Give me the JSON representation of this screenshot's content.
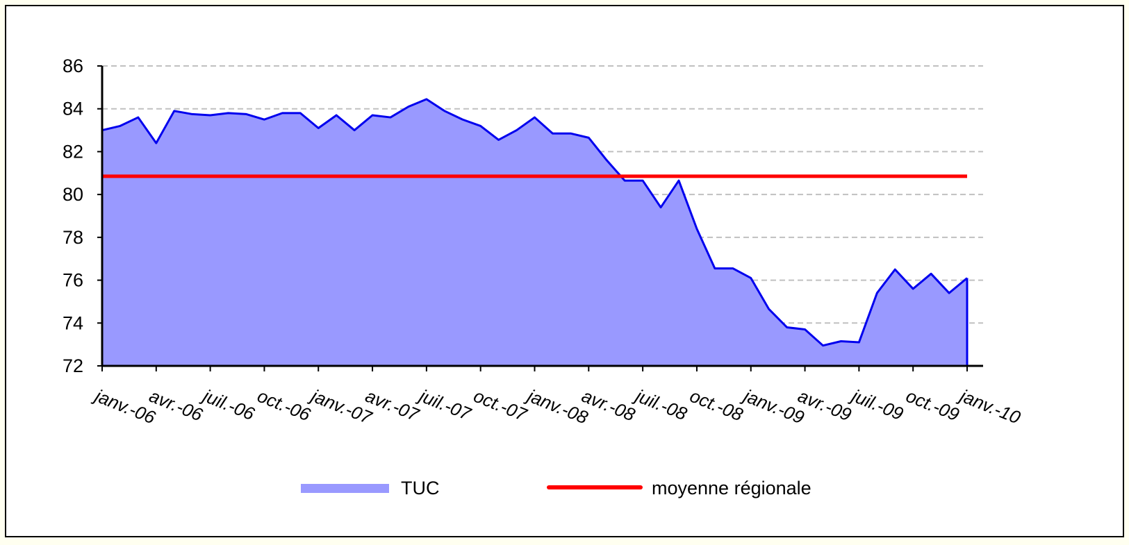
{
  "chart_data": {
    "type": "area",
    "categories": [
      "janv.-06",
      null,
      null,
      "avr.-06",
      null,
      null,
      "juil.-06",
      null,
      null,
      "oct.-06",
      null,
      null,
      "janv.-07",
      null,
      null,
      "avr.-07",
      null,
      null,
      "juil.-07",
      null,
      null,
      "oct.-07",
      null,
      null,
      "janv.-08",
      null,
      null,
      "avr.-08",
      null,
      null,
      "juil.-08",
      null,
      null,
      "oct.-08",
      null,
      null,
      "janv.-09",
      null,
      null,
      "avr.-09",
      null,
      null,
      "juil.-09",
      null,
      null,
      "oct.-09",
      null,
      null,
      "janv.-10"
    ],
    "series": [
      {
        "name": "TUC",
        "color": "#9999ff",
        "line_color": "#0000ee",
        "values": [
          83.0,
          83.2,
          83.6,
          82.4,
          83.9,
          83.75,
          83.7,
          83.8,
          83.75,
          83.5,
          83.8,
          83.8,
          83.1,
          83.7,
          83.0,
          83.7,
          83.6,
          84.1,
          84.45,
          83.9,
          83.5,
          83.2,
          82.55,
          83.0,
          83.6,
          82.85,
          82.85,
          82.65,
          81.6,
          80.65,
          80.65,
          79.4,
          80.65,
          78.4,
          76.55,
          76.55,
          76.1,
          74.65,
          73.8,
          73.7,
          72.95,
          73.15,
          73.1,
          75.4,
          76.5,
          75.6,
          76.3,
          75.4,
          76.1
        ]
      },
      {
        "name": "moyenne régionale",
        "color": "#ff0000",
        "type": "line",
        "values": [
          80.85,
          80.85,
          80.85,
          80.85,
          80.85,
          80.85,
          80.85,
          80.85,
          80.85,
          80.85,
          80.85,
          80.85,
          80.85,
          80.85,
          80.85,
          80.85,
          80.85,
          80.85,
          80.85,
          80.85,
          80.85,
          80.85,
          80.85,
          80.85,
          80.85,
          80.85,
          80.85,
          80.85,
          80.85,
          80.85,
          80.85,
          80.85,
          80.85,
          80.85,
          80.85,
          80.85,
          80.85,
          80.85,
          80.85,
          80.85,
          80.85,
          80.85,
          80.85,
          80.85,
          80.85,
          80.85,
          80.85,
          80.85,
          80.85
        ]
      }
    ],
    "ylim": [
      72,
      86
    ],
    "yticks": [
      72,
      74,
      76,
      78,
      80,
      82,
      84,
      86
    ],
    "grid": true,
    "legend": "bottom"
  }
}
